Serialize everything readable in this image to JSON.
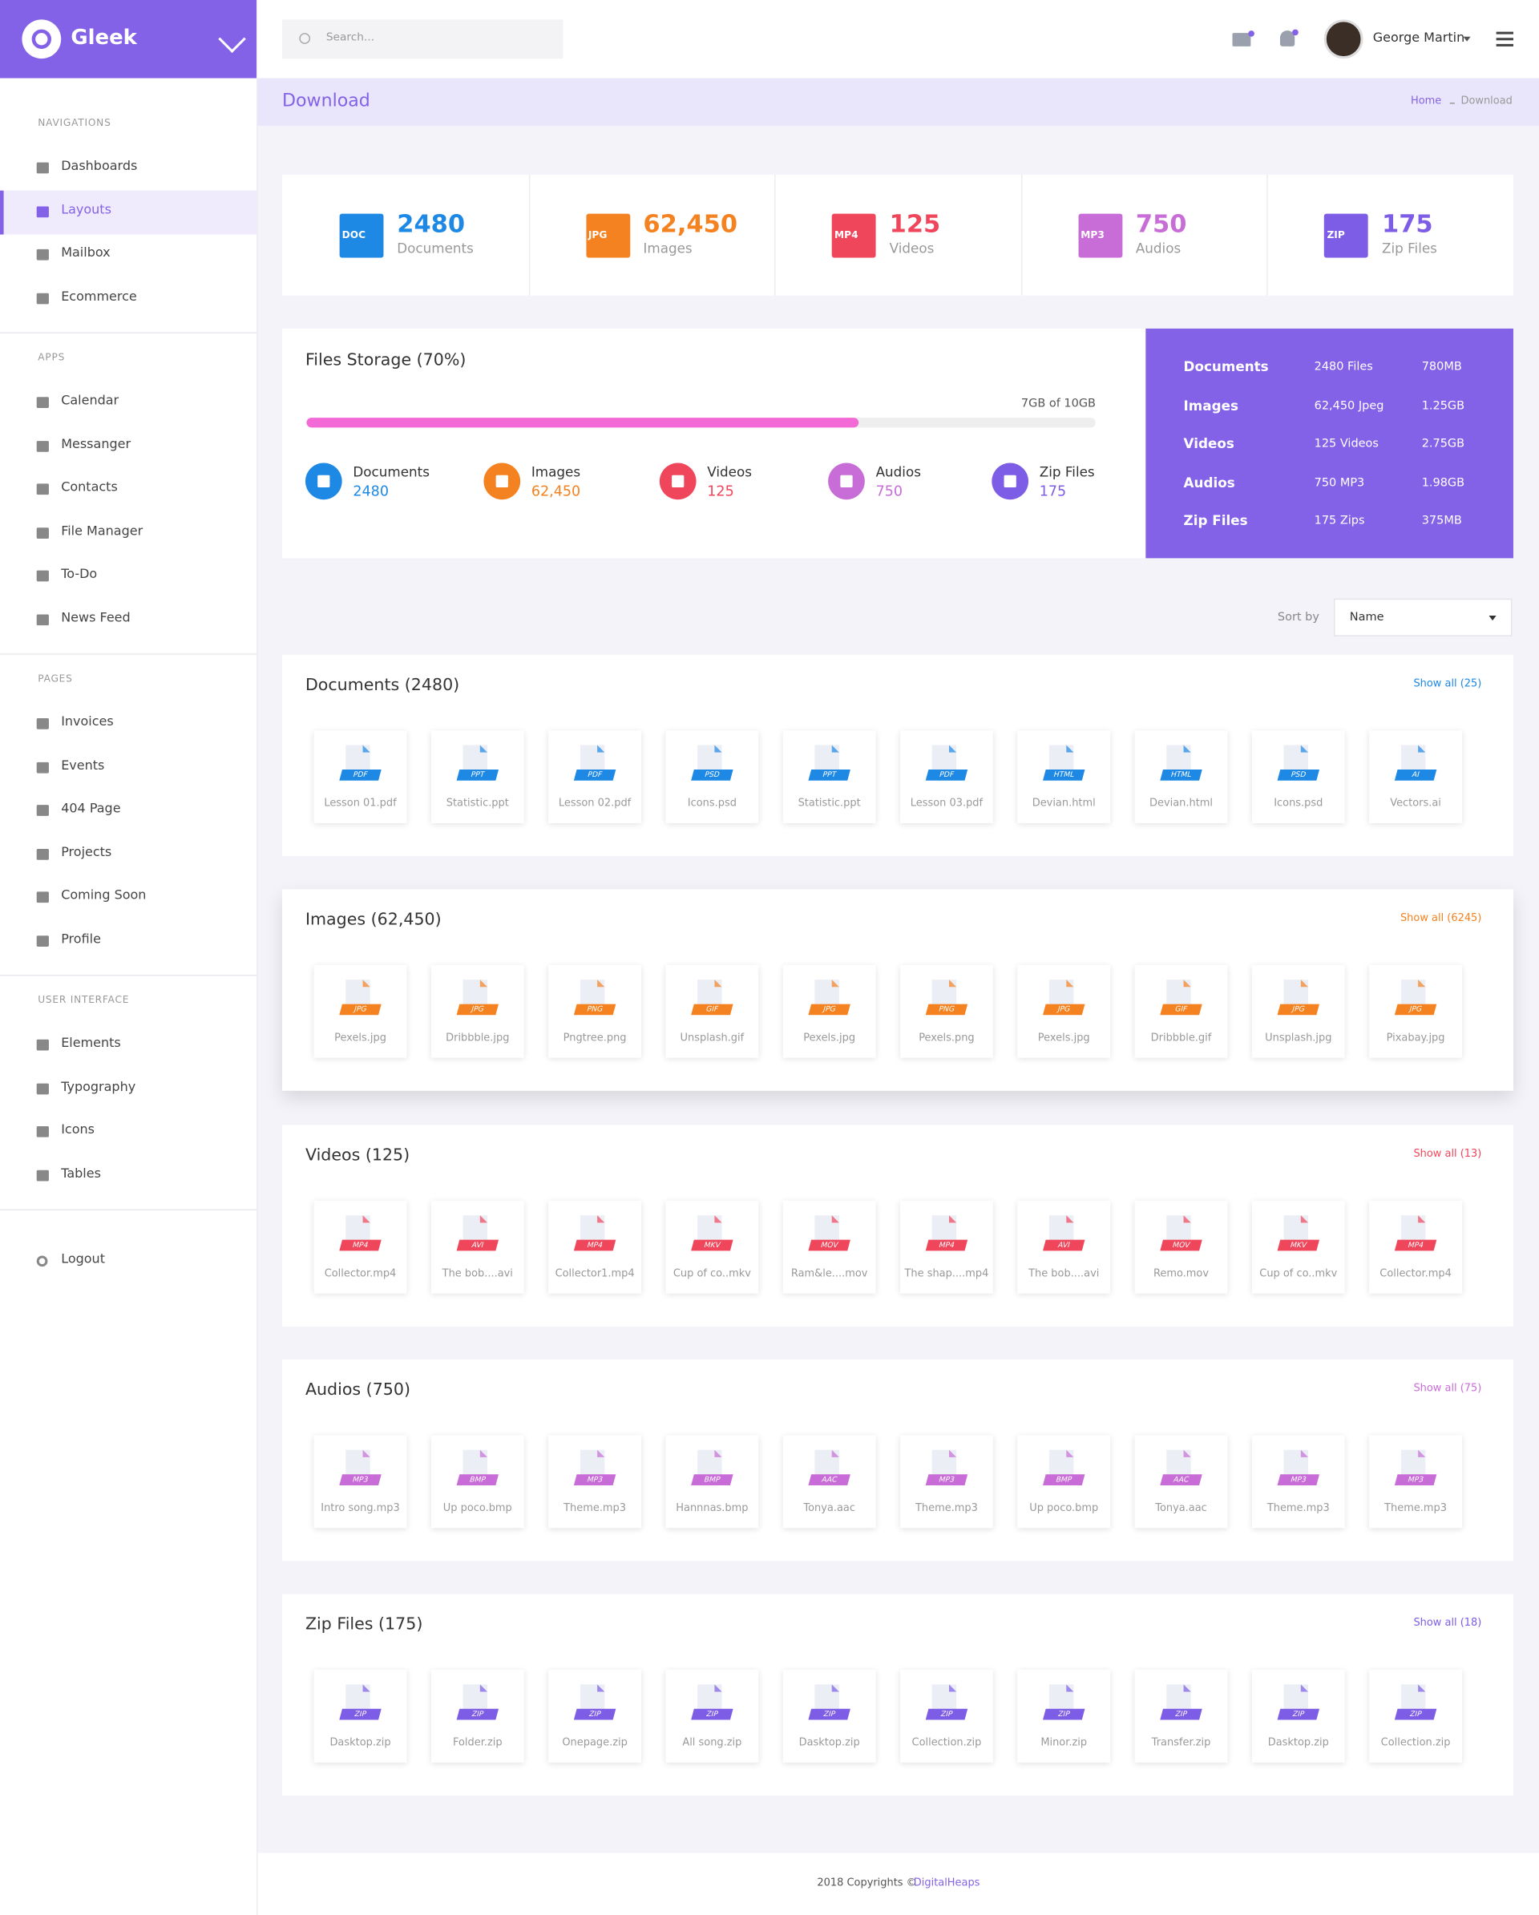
{
  "brand": "Gleek",
  "search_placeholder": "Search...",
  "user": "George Martin",
  "page_title": "Download",
  "breadcrumb": [
    "Home",
    "Download"
  ],
  "sidebar": [
    {
      "heading": "NAVIGATIONS",
      "items": [
        "Dashboards",
        "Layouts",
        "Mailbox",
        "Ecommerce"
      ],
      "active": 1
    },
    {
      "heading": "APPS",
      "items": [
        "Calendar",
        "Messanger",
        "Contacts",
        "File Manager",
        "To-Do",
        "News Feed"
      ]
    },
    {
      "heading": "PAGES",
      "items": [
        "Invoices",
        "Events",
        "404 Page",
        "Projects",
        "Coming Soon",
        "Profile"
      ]
    },
    {
      "heading": "USER INTERFACE",
      "items": [
        "Elements",
        "Typography",
        "Icons",
        "Tables"
      ]
    }
  ],
  "logout": "Logout",
  "stats": [
    {
      "icon": "DOC",
      "value": "2480",
      "label": "Documents",
      "color": "#1e88e5"
    },
    {
      "icon": "JPG",
      "value": "62,450",
      "label": "Images",
      "color": "#f58220"
    },
    {
      "icon": "MP4",
      "value": "125",
      "label": "Videos",
      "color": "#f0465b"
    },
    {
      "icon": "MP3",
      "value": "750",
      "label": "Audios",
      "color": "#c86dd7"
    },
    {
      "icon": "ZIP",
      "value": "175",
      "label": "Zip Files",
      "color": "#7d5ce6"
    }
  ],
  "storage": {
    "title": "Files Storage (70%)",
    "progress": 70,
    "usage": "7GB of 10GB",
    "items": [
      {
        "label": "Documents",
        "value": "2480",
        "color": "#1e88e5"
      },
      {
        "label": "Images",
        "value": "62,450",
        "color": "#f58220"
      },
      {
        "label": "Videos",
        "value": "125",
        "color": "#f0465b"
      },
      {
        "label": "Audios",
        "value": "750",
        "color": "#c86dd7"
      },
      {
        "label": "Zip Files",
        "value": "175",
        "color": "#7d5ce6"
      }
    ],
    "summary": [
      [
        "Documents",
        "2480 Files",
        "780MB"
      ],
      [
        "Images",
        "62,450 Jpeg",
        "1.25GB"
      ],
      [
        "Videos",
        "125 Videos",
        "2.75GB"
      ],
      [
        "Audios",
        "750 MP3",
        "1.98GB"
      ],
      [
        "Zip Files",
        "175 Zips",
        "375MB"
      ]
    ]
  },
  "sort": {
    "label": "Sort by",
    "value": "Name"
  },
  "sections": [
    {
      "title": "Documents (2480)",
      "show_all": "Show all (25)",
      "color": "#1e88e5",
      "files": [
        {
          "ext": "PDF",
          "name": "Lesson 01.pdf"
        },
        {
          "ext": "PPT",
          "name": "Statistic.ppt"
        },
        {
          "ext": "PDF",
          "name": "Lesson 02.pdf"
        },
        {
          "ext": "PSD",
          "name": "Icons.psd"
        },
        {
          "ext": "PPT",
          "name": "Statistic.ppt"
        },
        {
          "ext": "PDF",
          "name": "Lesson 03.pdf"
        },
        {
          "ext": "HTML",
          "name": "Devian.html"
        },
        {
          "ext": "HTML",
          "name": "Devian.html"
        },
        {
          "ext": "PSD",
          "name": "Icons.psd"
        },
        {
          "ext": "AI",
          "name": "Vectors.ai"
        }
      ]
    },
    {
      "title": "Images (62,450)",
      "show_all": "Show all (6245)",
      "color": "#f58220",
      "files": [
        {
          "ext": "JPG",
          "name": "Pexels.jpg"
        },
        {
          "ext": "JPG",
          "name": "Dribbble.jpg"
        },
        {
          "ext": "PNG",
          "name": "Pngtree.png"
        },
        {
          "ext": "GIF",
          "name": "Unsplash.gif"
        },
        {
          "ext": "JPG",
          "name": "Pexels.jpg"
        },
        {
          "ext": "PNG",
          "name": "Pexels.png"
        },
        {
          "ext": "JPG",
          "name": "Pexels.jpg"
        },
        {
          "ext": "GIF",
          "name": "Dribbble.gif"
        },
        {
          "ext": "JPG",
          "name": "Unsplash.jpg"
        },
        {
          "ext": "JPG",
          "name": "Pixabay.jpg"
        }
      ]
    },
    {
      "title": "Videos (125)",
      "show_all": "Show all (13)",
      "color": "#f0465b",
      "files": [
        {
          "ext": "MP4",
          "name": "Collector.mp4"
        },
        {
          "ext": "AVI",
          "name": "The bob....avi"
        },
        {
          "ext": "MP4",
          "name": "Collector1.mp4"
        },
        {
          "ext": "MKV",
          "name": "Cup of co..mkv"
        },
        {
          "ext": "MOV",
          "name": "Ram&le....mov"
        },
        {
          "ext": "MP4",
          "name": "The shap....mp4"
        },
        {
          "ext": "AVI",
          "name": "The bob....avi"
        },
        {
          "ext": "MOV",
          "name": "Remo.mov"
        },
        {
          "ext": "MKV",
          "name": "Cup of co..mkv"
        },
        {
          "ext": "MP4",
          "name": "Collector.mp4"
        }
      ]
    },
    {
      "title": "Audios (750)",
      "show_all": "Show all (75)",
      "color": "#c86dd7",
      "files": [
        {
          "ext": "MP3",
          "name": "Intro song.mp3"
        },
        {
          "ext": "BMP",
          "name": "Up poco.bmp"
        },
        {
          "ext": "MP3",
          "name": "Theme.mp3"
        },
        {
          "ext": "BMP",
          "name": "Hannnas.bmp"
        },
        {
          "ext": "AAC",
          "name": "Tonya.aac"
        },
        {
          "ext": "MP3",
          "name": "Theme.mp3"
        },
        {
          "ext": "BMP",
          "name": "Up poco.bmp"
        },
        {
          "ext": "AAC",
          "name": "Tonya.aac"
        },
        {
          "ext": "MP3",
          "name": "Theme.mp3"
        },
        {
          "ext": "MP3",
          "name": "Theme.mp3"
        }
      ]
    },
    {
      "title": "Zip Files (175)",
      "show_all": "Show all (18)",
      "color": "#7d5ce6",
      "files": [
        {
          "ext": "ZIP",
          "name": "Dasktop.zip"
        },
        {
          "ext": "ZIP",
          "name": "Folder.zip"
        },
        {
          "ext": "ZIP",
          "name": "Onepage.zip"
        },
        {
          "ext": "ZIP",
          "name": "All song.zip"
        },
        {
          "ext": "ZIP",
          "name": "Dasktop.zip"
        },
        {
          "ext": "ZIP",
          "name": "Collection.zip"
        },
        {
          "ext": "ZIP",
          "name": "Minor.zip"
        },
        {
          "ext": "ZIP",
          "name": "Transfer.zip"
        },
        {
          "ext": "ZIP",
          "name": "Dasktop.zip"
        },
        {
          "ext": "ZIP",
          "name": "Collection.zip"
        }
      ]
    }
  ],
  "footer": {
    "text": "2018 Copyrights ©",
    "link": "DigitalHeaps"
  }
}
